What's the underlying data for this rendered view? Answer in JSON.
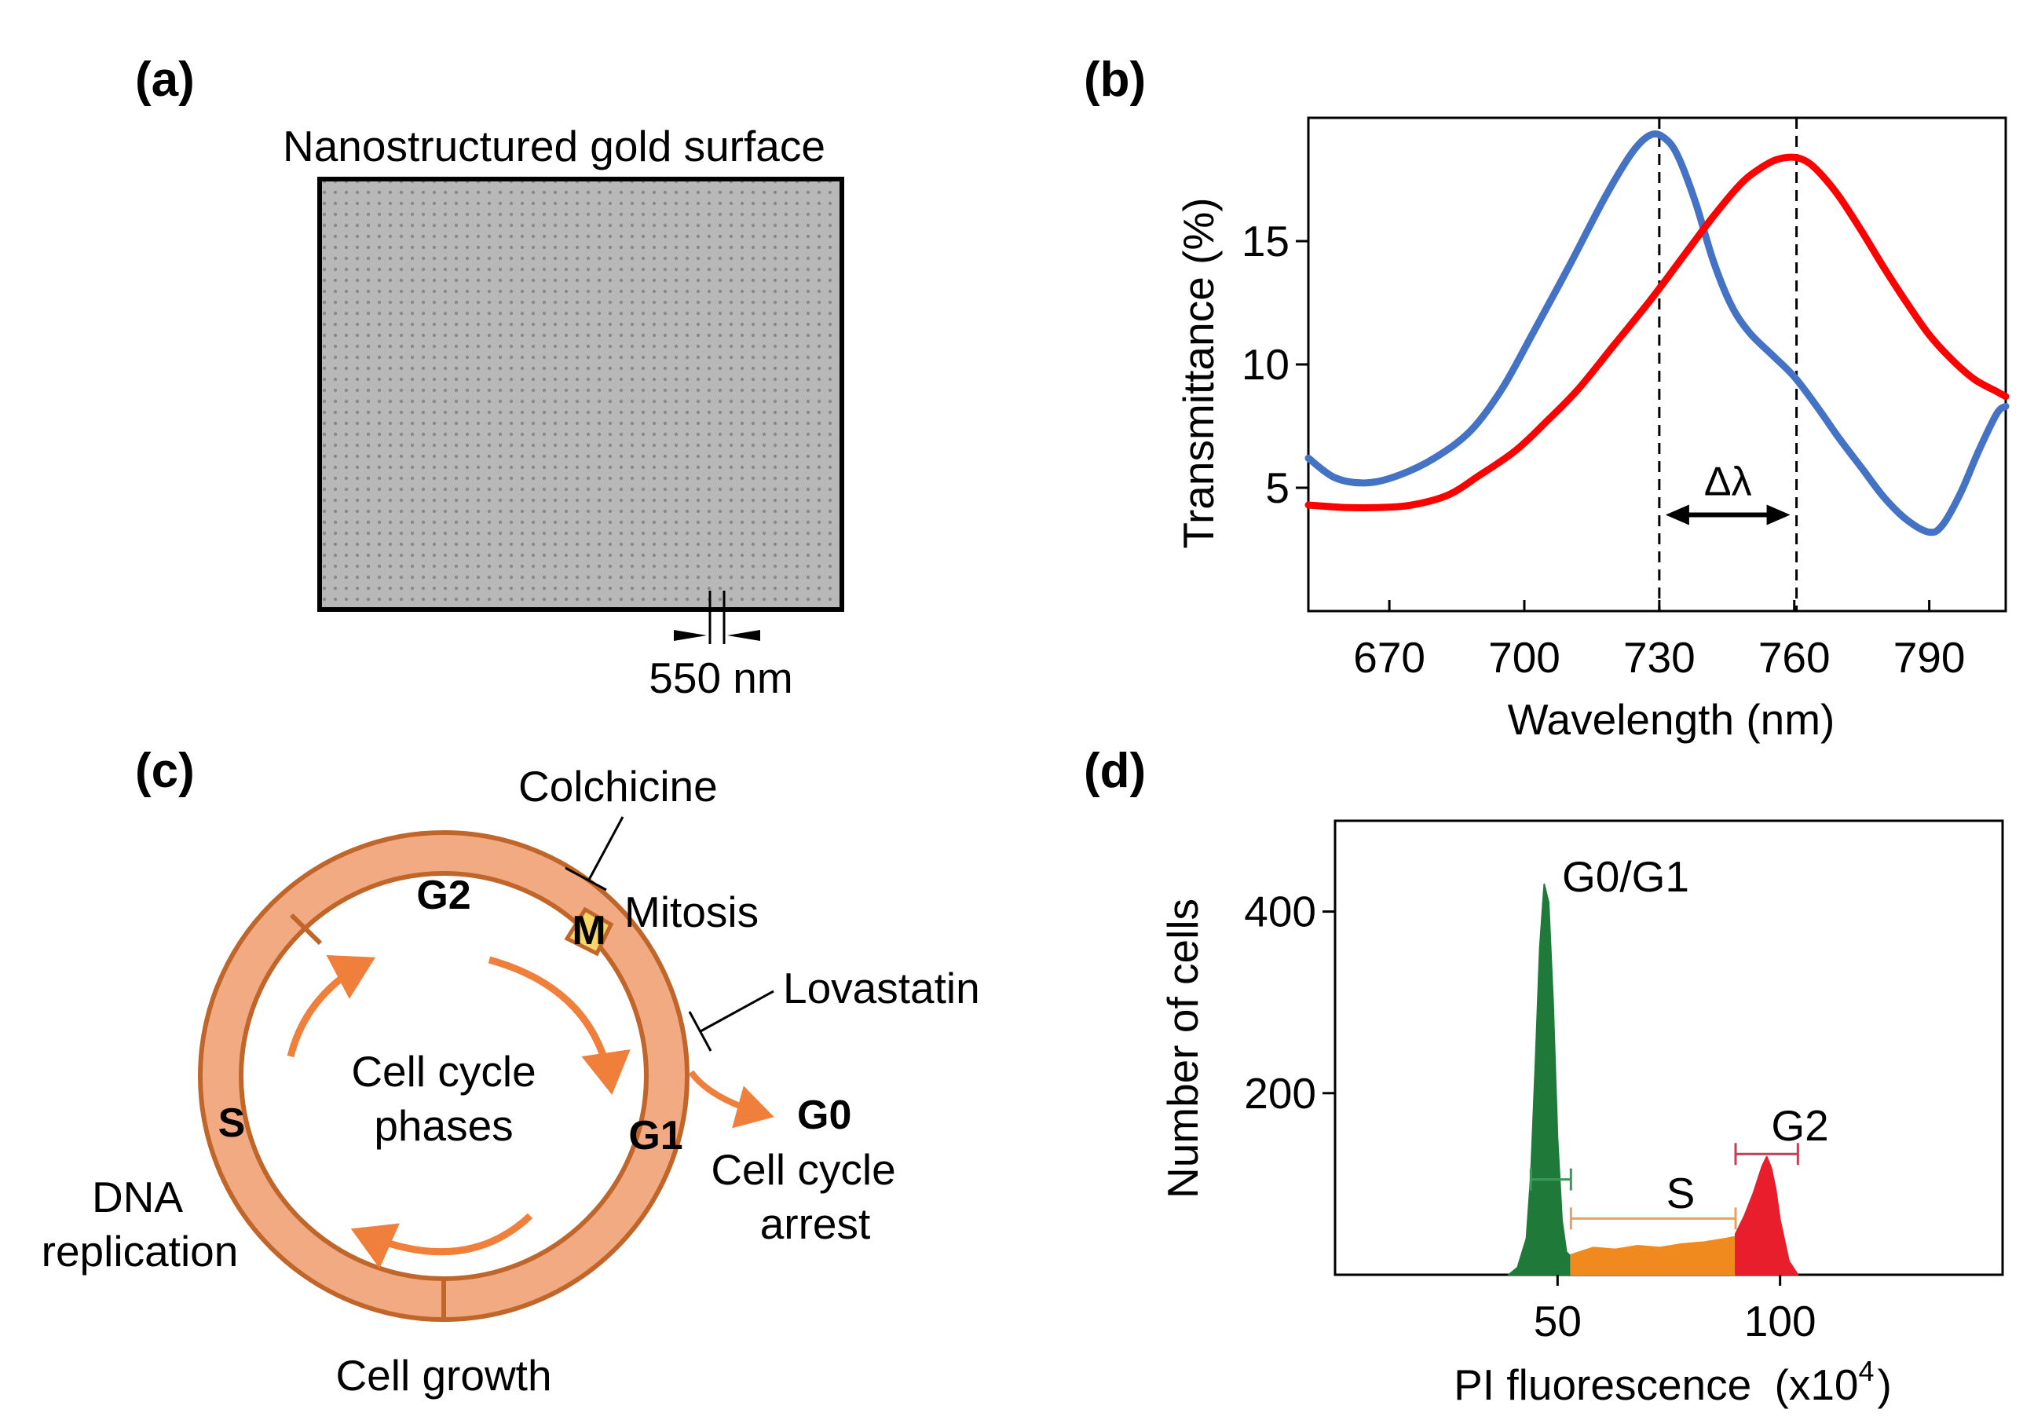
{
  "panel_labels": {
    "a": "(a)",
    "b": "(b)",
    "c": "(c)",
    "d": "(d)"
  },
  "panel_a": {
    "title": "Nanostructured  gold surface",
    "scale_label": "550 nm",
    "colors": {
      "surface": "#b8b8b8",
      "dots": "#8a8a8a",
      "border": "#000000"
    }
  },
  "panel_b": {
    "delta_label": "Δλ",
    "colors": {
      "series_1": "#4472c4",
      "series_2": "#ff0000"
    }
  },
  "panel_c": {
    "center_line1": "Cell cycle",
    "center_line2": "phases",
    "phase_g2": "G2",
    "phase_m": "M",
    "phase_g1": "G1",
    "phase_s": "S",
    "g0": "G0",
    "colchicine": "Colchicine",
    "mitosis": "Mitosis",
    "lovastatin": "Lovastatin",
    "arrest_line1": "Cell cycle",
    "arrest_line2": "arrest",
    "dna_line1": "DNA",
    "dna_line2": "replication",
    "cell_growth": "Cell growth",
    "colors": {
      "ring_fill": "#f2aa82",
      "ring_stroke": "#c0662a",
      "m_fill": "#f8d568",
      "arrow": "#ef7f3a"
    }
  },
  "panel_d": {
    "label_g0g1": "G0/G1",
    "label_s": "S",
    "label_g2": "G2",
    "colors": {
      "g0g1": "#1f7a3a",
      "s": "#f08a1e",
      "g2": "#e81e2c",
      "bracket_g1": "#3a9a5a",
      "bracket_s": "#e8a060",
      "bracket_g2": "#c0405a"
    }
  },
  "chart_data": [
    {
      "type": "line",
      "title": "",
      "xlabel": "Wavelength  (nm)",
      "ylabel": "Transmittance  (%)",
      "xlim": [
        652,
        807
      ],
      "ylim": [
        0,
        20
      ],
      "xticks": [
        670,
        700,
        730,
        760,
        790
      ],
      "yticks": [
        5,
        10,
        15
      ],
      "annotations": {
        "vlines": [
          730,
          760.5
        ],
        "delta_label": "Δλ",
        "arrow_from": 730,
        "arrow_to": 760.5,
        "arrow_y": 3.9
      },
      "series": [
        {
          "name": "series 1 (blue)",
          "color": "#4472c4",
          "x": [
            652,
            658,
            665,
            672,
            680,
            688,
            695,
            702,
            710,
            718,
            724,
            728,
            731,
            734,
            738,
            742,
            746,
            750,
            755,
            760,
            765,
            770,
            775,
            780,
            785,
            790,
            793,
            797,
            801,
            805,
            807
          ],
          "y": [
            6.2,
            5.4,
            5.2,
            5.5,
            6.2,
            7.3,
            9.0,
            11.3,
            14.0,
            16.8,
            18.6,
            19.3,
            19.2,
            18.5,
            16.6,
            14.2,
            12.4,
            11.3,
            10.4,
            9.5,
            8.3,
            7.0,
            5.8,
            4.6,
            3.7,
            3.2,
            3.5,
            4.8,
            6.5,
            8.0,
            8.3
          ]
        },
        {
          "name": "series 2 (red)",
          "color": "#ff0000",
          "x": [
            652,
            660,
            668,
            675,
            683,
            690,
            698,
            705,
            712,
            720,
            728,
            735,
            742,
            748,
            752,
            756,
            760,
            763,
            766,
            770,
            775,
            780,
            785,
            790,
            795,
            800,
            805,
            807
          ],
          "y": [
            4.3,
            4.2,
            4.2,
            4.3,
            4.7,
            5.5,
            6.5,
            7.7,
            9.0,
            10.8,
            12.6,
            14.3,
            16.0,
            17.3,
            17.9,
            18.3,
            18.4,
            18.2,
            17.7,
            16.8,
            15.4,
            13.9,
            12.5,
            11.2,
            10.2,
            9.4,
            8.9,
            8.7
          ]
        }
      ]
    },
    {
      "type": "histogram",
      "title": "",
      "xlabel": "PI fluorescence",
      "xlabel_unit": "(x10",
      "xlabel_exp": "4",
      "xlabel_close": ")",
      "ylabel": "Number of cells",
      "xlim": [
        0,
        150
      ],
      "ylim": [
        0,
        500
      ],
      "xticks": [
        50,
        100
      ],
      "yticks": [
        200,
        400
      ],
      "series": [
        {
          "name": "G0/G1",
          "x": [
            39,
            41,
            43,
            44,
            45,
            46,
            47,
            48,
            49,
            50,
            51,
            52,
            53
          ],
          "y": [
            0,
            8,
            40,
            110,
            230,
            360,
            430,
            410,
            300,
            150,
            60,
            25,
            20
          ]
        },
        {
          "name": "S",
          "x": [
            53,
            58,
            63,
            68,
            73,
            78,
            83,
            88,
            90
          ],
          "y": [
            22,
            30,
            28,
            32,
            30,
            34,
            36,
            40,
            42
          ]
        },
        {
          "name": "G2",
          "x": [
            90,
            92,
            94,
            96,
            97,
            98,
            99,
            100,
            102,
            104
          ],
          "y": [
            45,
            65,
            90,
            120,
            130,
            118,
            95,
            60,
            15,
            0
          ]
        }
      ],
      "brackets": [
        {
          "name": "G0/G1",
          "from": 44,
          "to": 53,
          "y": 105
        },
        {
          "name": "S",
          "from": 53,
          "to": 90,
          "y": 62
        },
        {
          "name": "G2",
          "from": 90,
          "to": 104,
          "y": 133
        }
      ]
    }
  ]
}
